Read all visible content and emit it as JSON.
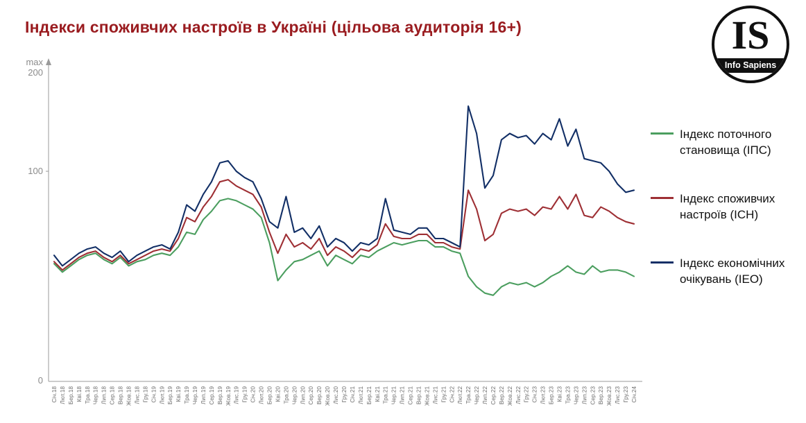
{
  "title": "Індекси споживчих настроїв в Україні (цільова аудиторія 16+)",
  "colors": {
    "title": "#9a1c20",
    "ips_green": "#4b9e5f",
    "ich_red": "#9e2f34",
    "ieo_navy": "#122f66",
    "axis_gray": "#9a9a9a"
  },
  "logo": {
    "monogram": "IS",
    "name": "Info Sapiens"
  },
  "y_axis": {
    "max_label": "max",
    "top_tick": "200",
    "mid_tick": "100",
    "bottom_tick": "0"
  },
  "legend": [
    {
      "label": "Індекс поточного становища (ІПС)",
      "color": "#4b9e5f"
    },
    {
      "label": "Індекс споживчих настроїв (ІСН)",
      "color": "#9e2f34"
    },
    {
      "label": "Індекс економічних очікувань (ІЕО)",
      "color": "#122f66"
    }
  ],
  "chart_data": {
    "type": "line",
    "title": "Індекси споживчих настроїв в Україні (цільова аудиторія 16+)",
    "xlabel": "",
    "ylabel": "",
    "ylim": [
      0,
      150
    ],
    "yticks": [
      0,
      100
    ],
    "y_axis_note": "max 200",
    "grid": false,
    "legend_position": "right",
    "x": [
      "Січ.18",
      "Лют.18",
      "Бер.18",
      "Кві.18",
      "Тра.18",
      "Чер.18",
      "Лип.18",
      "Сер.18",
      "Вер.18",
      "Жов.18",
      "Лис.18",
      "Гру.18",
      "Січ.19",
      "Лют.19",
      "Бер.19",
      "Кві.19",
      "Тра.19",
      "Чер.19",
      "Лип.19",
      "Сер.19",
      "Вер.19",
      "Жов.19",
      "Лис.19",
      "Гру.19",
      "Січ.20",
      "Лют.20",
      "Бер.20",
      "Кві.20",
      "Тра.20",
      "Чер.20",
      "Лип.20",
      "Сер.20",
      "Вер.20",
      "Жов.20",
      "Лис.20",
      "Гру.20",
      "Січ.21",
      "Лют.21",
      "Бер.21",
      "Кві.21",
      "Тра.21",
      "Чер.21",
      "Лип.21",
      "Сер.21",
      "Вер.21",
      "Жов.21",
      "Лис.21",
      "Гру.21",
      "Січ.22",
      "Лют.22",
      "Тра.22",
      "Чер.22",
      "Лип.22",
      "Сер.22",
      "Вер.22",
      "Жов.22",
      "Лис.22",
      "Гру.22",
      "Січ.23",
      "Лют.23",
      "Бер.23",
      "Кві.23",
      "Тра.23",
      "Чер.23",
      "Лип.23",
      "Сер.23",
      "Вер.23",
      "Жов.23",
      "Лис.23",
      "Гру.23",
      "Січ.24"
    ],
    "series": [
      {
        "name": "Індекс поточного становища (ІПС)",
        "color": "#4b9e5f",
        "values": [
          56,
          52,
          55,
          58,
          60,
          61,
          58,
          56,
          59,
          55,
          57,
          58,
          60,
          61,
          60,
          64,
          71,
          70,
          77,
          81,
          86,
          87,
          86,
          84,
          82,
          78,
          66,
          48,
          53,
          57,
          58,
          60,
          62,
          55,
          60,
          58,
          56,
          60,
          59,
          62,
          64,
          66,
          65,
          66,
          67,
          67,
          64,
          64,
          62,
          61,
          50,
          45,
          42,
          41,
          45,
          47,
          46,
          47,
          45,
          47,
          50,
          52,
          55,
          52,
          51,
          55,
          52,
          53,
          53,
          52,
          50
        ]
      },
      {
        "name": "Індекс споживчих настроїв (ІСН)",
        "color": "#9e2f34",
        "values": [
          57,
          53,
          56,
          59,
          61,
          62,
          59,
          57,
          60,
          56,
          58,
          60,
          62,
          63,
          62,
          68,
          78,
          76,
          83,
          88,
          95,
          96,
          93,
          91,
          89,
          83,
          71,
          61,
          70,
          64,
          66,
          63,
          68,
          60,
          64,
          62,
          59,
          63,
          62,
          65,
          75,
          69,
          68,
          68,
          70,
          70,
          66,
          66,
          64,
          63,
          91,
          82,
          67,
          70,
          80,
          82,
          81,
          82,
          79,
          83,
          82,
          88,
          82,
          89,
          79,
          78,
          83,
          81,
          78,
          76,
          75
        ]
      },
      {
        "name": "Індекс економічних очікувань (ІЕО)",
        "color": "#122f66",
        "values": [
          60,
          55,
          58,
          61,
          63,
          64,
          61,
          59,
          62,
          57,
          60,
          62,
          64,
          65,
          63,
          71,
          84,
          81,
          89,
          95,
          104,
          105,
          100,
          97,
          95,
          87,
          76,
          73,
          88,
          71,
          73,
          68,
          74,
          64,
          68,
          66,
          62,
          66,
          65,
          68,
          87,
          72,
          71,
          70,
          73,
          73,
          68,
          68,
          66,
          64,
          131,
          118,
          92,
          98,
          115,
          118,
          116,
          117,
          113,
          118,
          115,
          125,
          112,
          120,
          106,
          105,
          104,
          100,
          94,
          90,
          91
        ]
      }
    ]
  }
}
